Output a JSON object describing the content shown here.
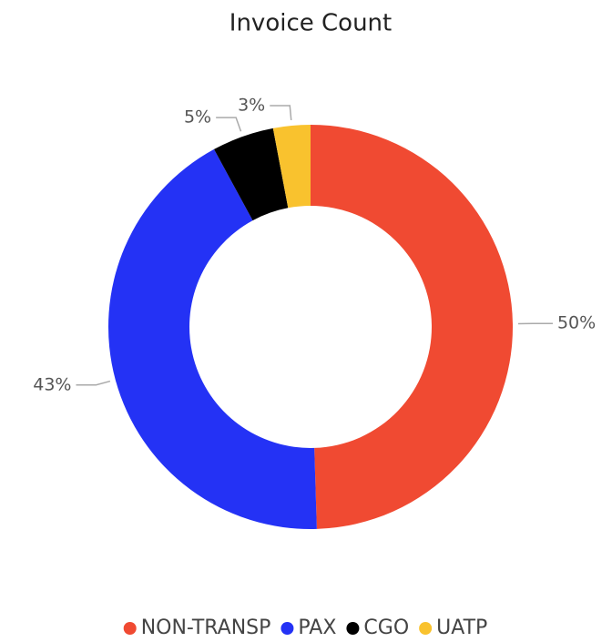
{
  "chart_data": {
    "type": "donut",
    "title": "Invoice Count",
    "categories": [
      "NON-TRANSP",
      "PAX",
      "CGO",
      "UATP"
    ],
    "values": [
      50,
      43,
      5,
      3
    ],
    "value_labels": [
      "50%",
      "43%",
      "5%",
      "3%"
    ],
    "colors": [
      "#f04a32",
      "#2432f5",
      "#000000",
      "#f9c22e"
    ],
    "legend": "bottom"
  }
}
